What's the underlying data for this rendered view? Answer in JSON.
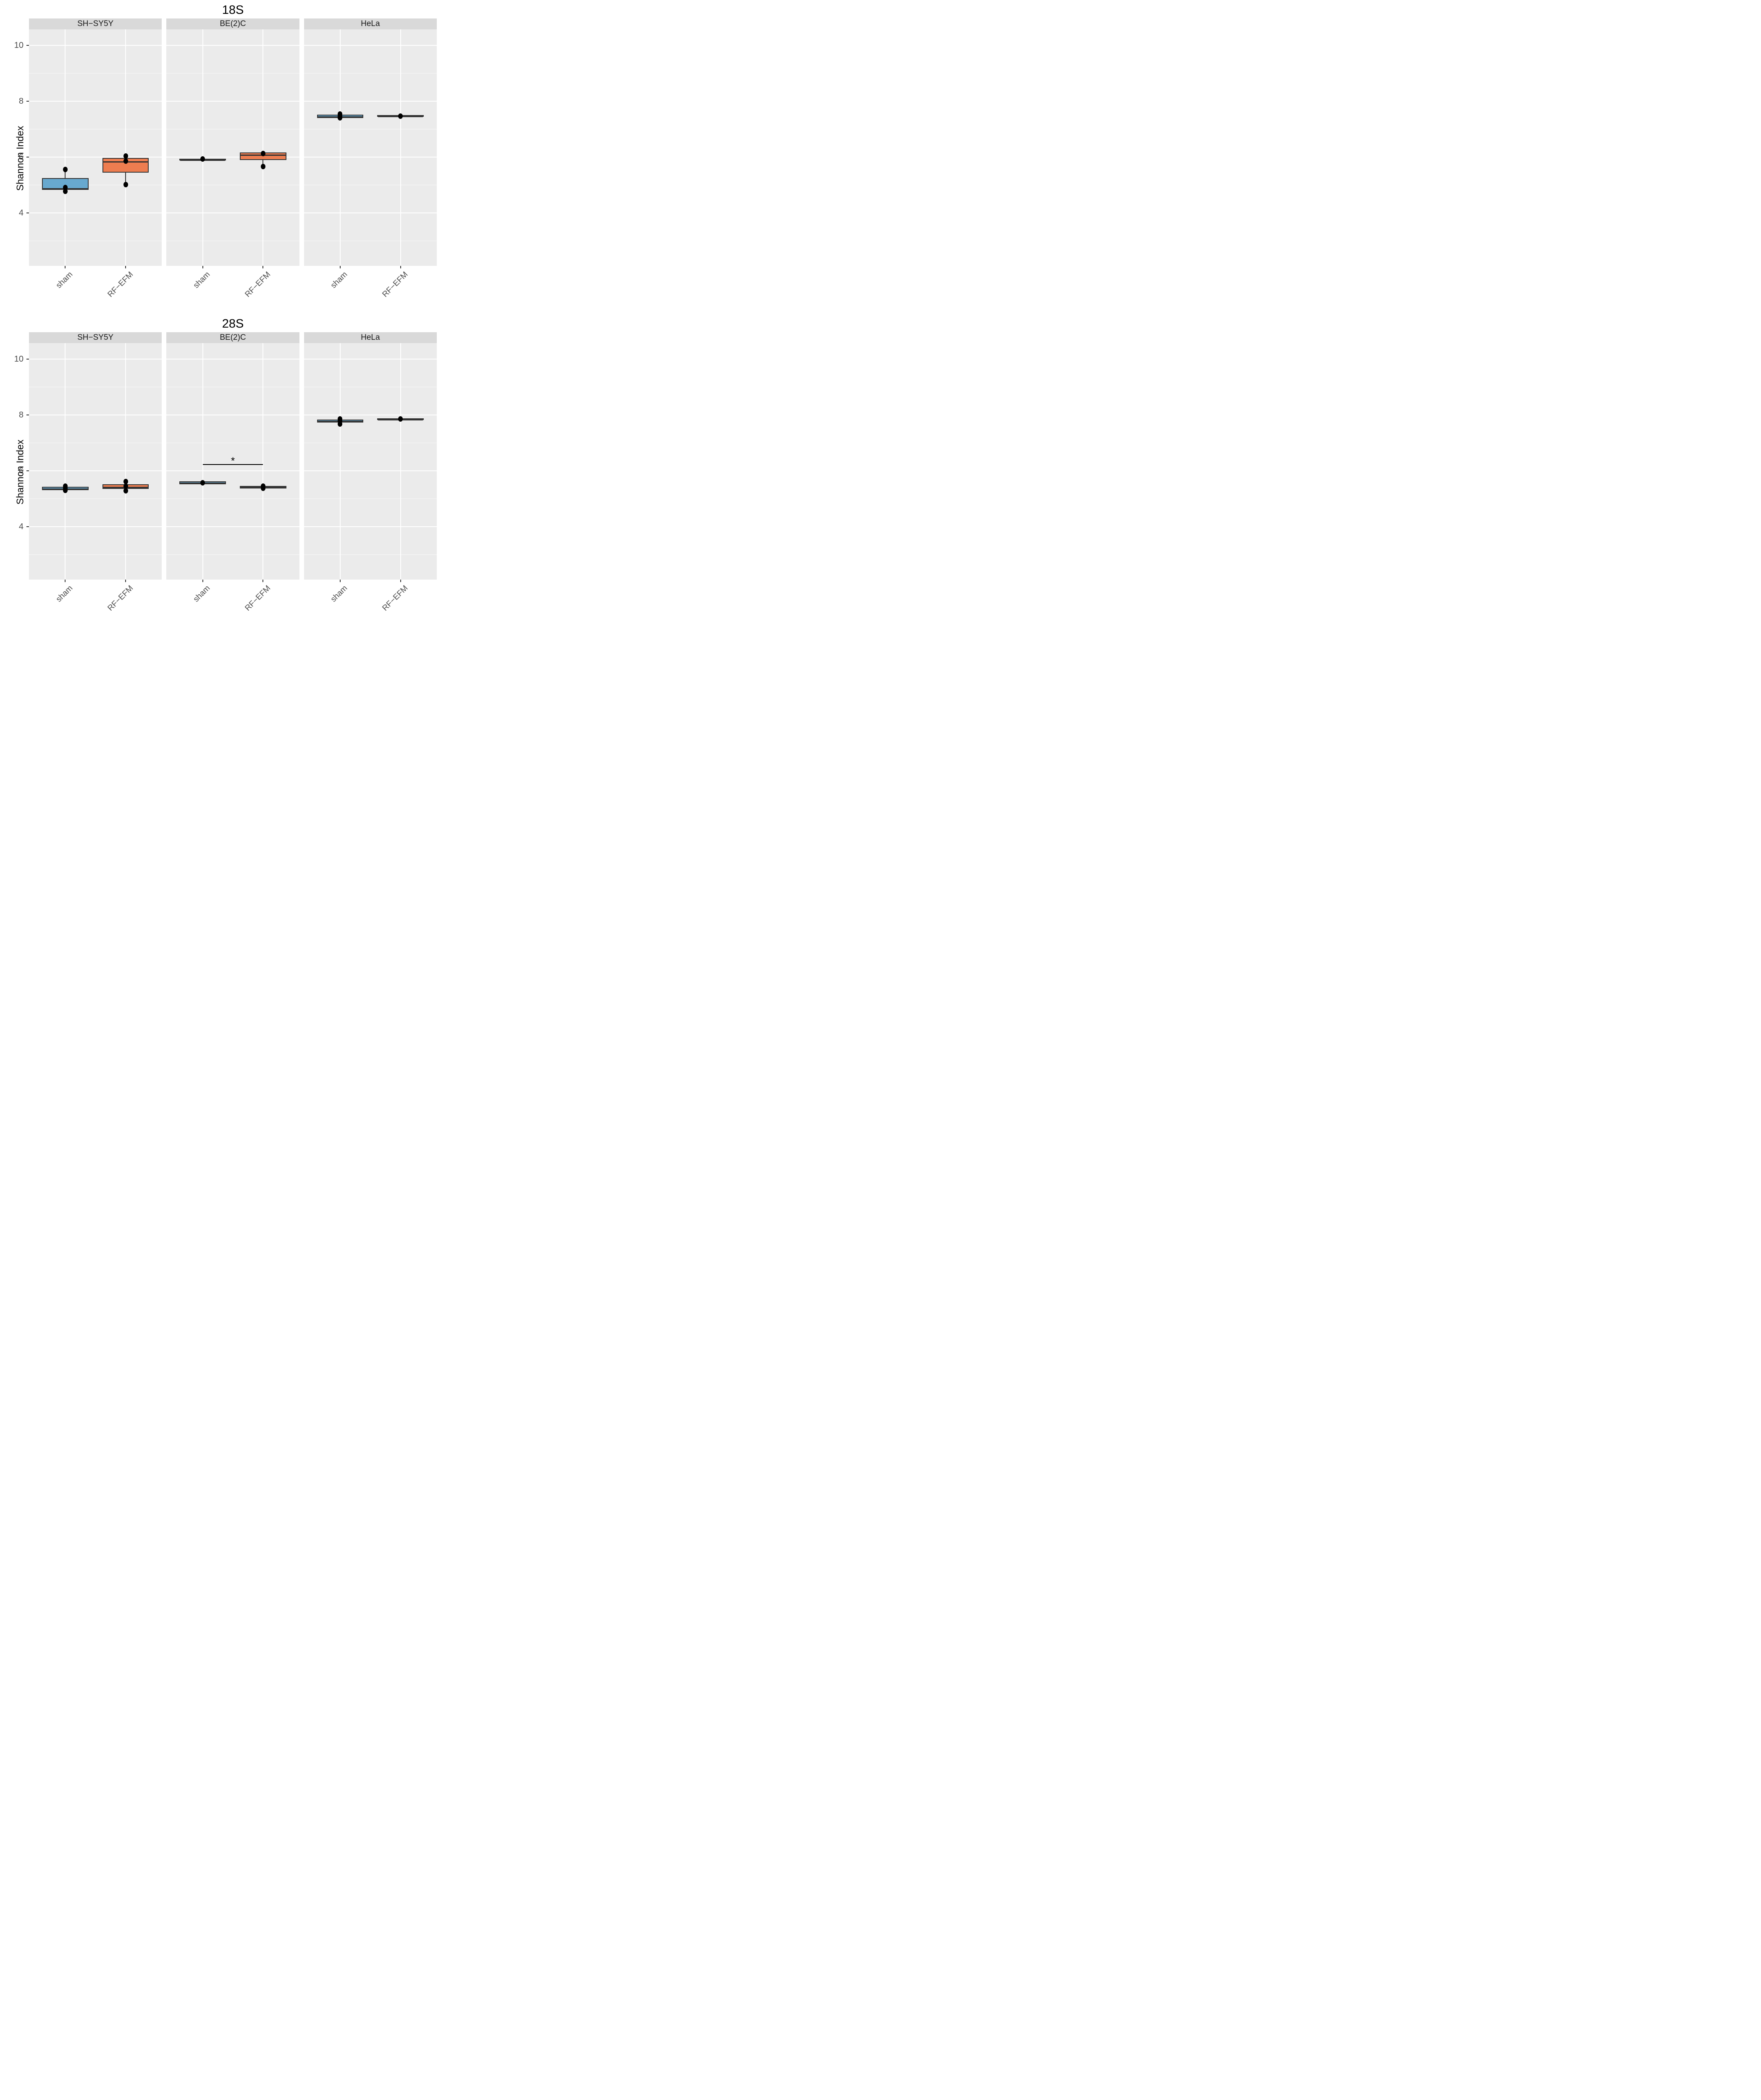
{
  "figure_titles": {
    "top": "18S",
    "bottom": "28S"
  },
  "colors": {
    "panel_bg": "#ebebeb",
    "strip_bg": "#d9d9d9",
    "grid": "#ffffff",
    "box_border": "#333333",
    "point": "#000000",
    "sham_fill": "#68A9CF",
    "rfefm_fill": "#ED7D50"
  },
  "chart_data": [
    {
      "type": "boxplot",
      "title": "18S",
      "ylabel": "Shannon Index",
      "ylim": [
        2.1,
        10.57
      ],
      "yticks_major": [
        10,
        8,
        6,
        4
      ],
      "yticks_minor": [
        9,
        7,
        5,
        3
      ],
      "categories": [
        "sham",
        "RF−EFM"
      ],
      "legend_position": "none",
      "grid": true,
      "facets": [
        {
          "label": "SH−SY5Y",
          "groups": [
            {
              "category": "sham",
              "fill": "#68A9CF",
              "q1": 4.83,
              "median": 4.89,
              "q3": 5.24,
              "whisker_low": 4.76,
              "whisker_high": 5.56,
              "points": [
                5.56,
                4.9,
                4.77
              ]
            },
            {
              "category": "RF−EFM",
              "fill": "#ED7D50",
              "q1": 5.44,
              "median": 5.86,
              "q3": 5.97,
              "whisker_low": 5.01,
              "whisker_high": 6.04,
              "points": [
                6.04,
                5.86,
                5.01
              ]
            }
          ],
          "annotations": []
        },
        {
          "label": "BE(2)C",
          "groups": [
            {
              "category": "sham",
              "fill": "#68A9CF",
              "q1": 5.9,
              "median": 5.92,
              "q3": 5.94,
              "whisker_low": 5.9,
              "whisker_high": 5.94,
              "points": [
                5.93
              ]
            },
            {
              "category": "RF−EFM",
              "fill": "#ED7D50",
              "q1": 5.89,
              "median": 6.1,
              "q3": 6.16,
              "whisker_low": 5.66,
              "whisker_high": 6.16,
              "points": [
                6.12,
                5.66
              ]
            }
          ],
          "annotations": []
        },
        {
          "label": "HeLa",
          "groups": [
            {
              "category": "sham",
              "fill": "#68A9CF",
              "q1": 7.4,
              "median": 7.44,
              "q3": 7.51,
              "whisker_low": 7.4,
              "whisker_high": 7.51,
              "points": [
                7.54,
                7.46,
                7.41
              ]
            },
            {
              "category": "RF−EFM",
              "fill": "#ED7D50",
              "q1": 7.44,
              "median": 7.47,
              "q3": 7.5,
              "whisker_low": 7.44,
              "whisker_high": 7.5,
              "points": [
                7.47
              ]
            }
          ],
          "annotations": []
        }
      ]
    },
    {
      "type": "boxplot",
      "title": "28S",
      "ylabel": "Shannon Index",
      "ylim": [
        2.1,
        10.57
      ],
      "yticks_major": [
        10,
        8,
        6,
        4
      ],
      "yticks_minor": [
        9,
        7,
        5,
        3
      ],
      "categories": [
        "sham",
        "RF−EFM"
      ],
      "legend_position": "none",
      "grid": true,
      "facets": [
        {
          "label": "SH−SY5Y",
          "groups": [
            {
              "category": "sham",
              "fill": "#68A9CF",
              "q1": 5.31,
              "median": 5.37,
              "q3": 5.42,
              "whisker_low": 5.31,
              "whisker_high": 5.42,
              "points": [
                5.45,
                5.37,
                5.29
              ]
            },
            {
              "category": "RF−EFM",
              "fill": "#ED7D50",
              "q1": 5.35,
              "median": 5.43,
              "q3": 5.52,
              "whisker_low": 5.35,
              "whisker_high": 5.52,
              "points": [
                5.61,
                5.44,
                5.28
              ]
            }
          ],
          "annotations": []
        },
        {
          "label": "BE(2)C",
          "groups": [
            {
              "category": "sham",
              "fill": "#68A9CF",
              "q1": 5.51,
              "median": 5.56,
              "q3": 5.62,
              "whisker_low": 5.51,
              "whisker_high": 5.62,
              "points": [
                5.57
              ]
            },
            {
              "category": "RF−EFM",
              "fill": "#ED7D50",
              "q1": 5.36,
              "median": 5.41,
              "q3": 5.46,
              "whisker_low": 5.36,
              "whisker_high": 5.46,
              "points": [
                5.45,
                5.37
              ]
            }
          ],
          "annotations": [
            {
              "type": "significance-bracket",
              "label": "*",
              "y_line": 6.24,
              "y_label": 6.44,
              "from": "sham",
              "to": "RF−EFM"
            }
          ]
        },
        {
          "label": "HeLa",
          "groups": [
            {
              "category": "sham",
              "fill": "#68A9CF",
              "q1": 7.73,
              "median": 7.76,
              "q3": 7.83,
              "whisker_low": 7.68,
              "whisker_high": 7.85,
              "points": [
                7.85,
                7.78,
                7.68
              ]
            },
            {
              "category": "RF−EFM",
              "fill": "#ED7D50",
              "q1": 7.81,
              "median": 7.84,
              "q3": 7.87,
              "whisker_low": 7.81,
              "whisker_high": 7.87,
              "points": [
                7.85
              ]
            }
          ],
          "annotations": []
        }
      ]
    }
  ]
}
